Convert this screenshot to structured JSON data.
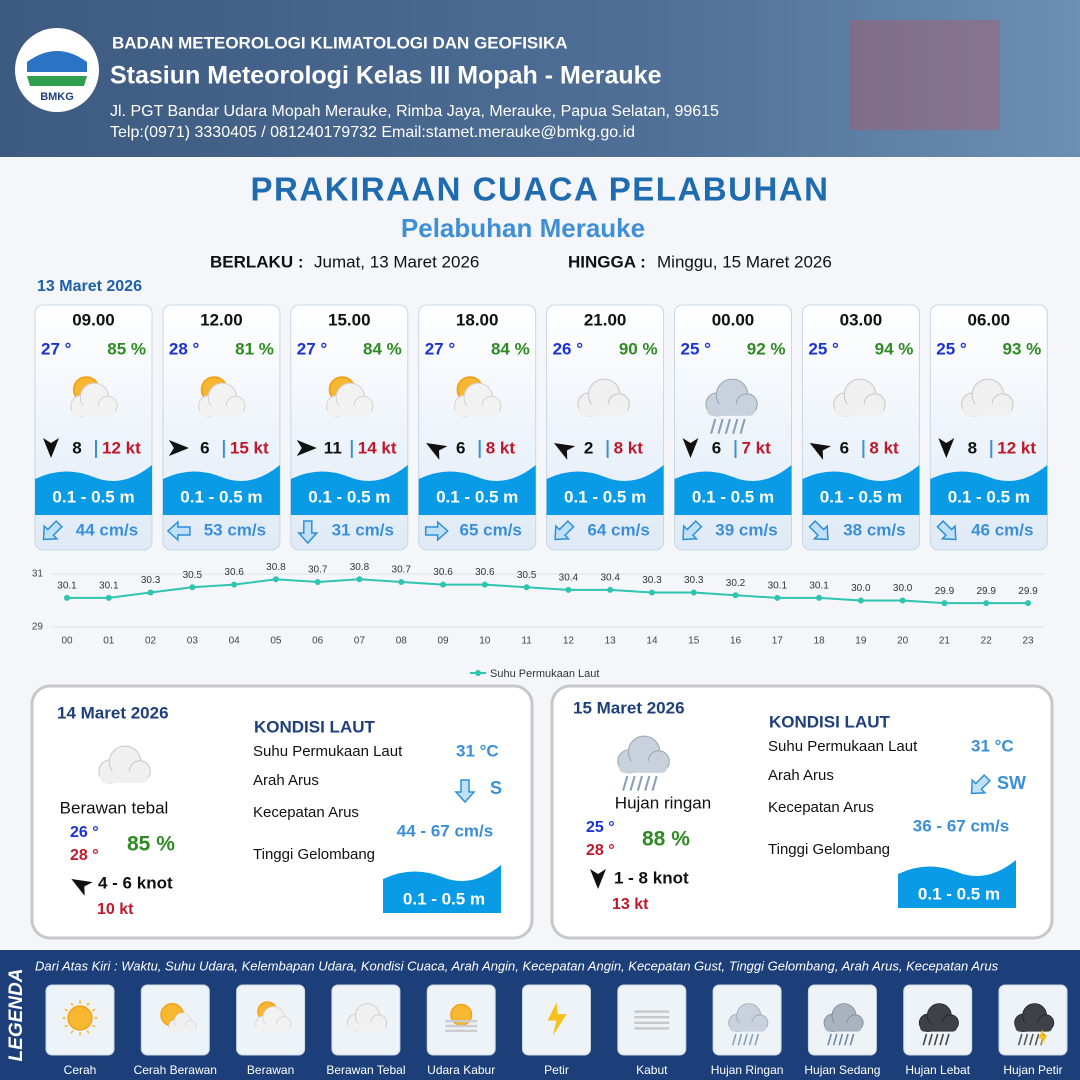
{
  "header": {
    "logo_text": "BMKG",
    "agency": "BADAN METEOROLOGI KLIMATOLOGI DAN GEOFISIKA",
    "station": "Stasiun Meteorologi Kelas III Mopah - Merauke",
    "address": "Jl. PGT Bandar Udara Mopah Merauke, Rimba Jaya, Merauke, Papua Selatan, 99615",
    "contact": "Telp:(0971) 3330405 / 081240179732  Email:stamet.merauke@bmkg.go.id"
  },
  "title": "PRAKIRAAN CUACA PELABUHAN",
  "subtitle": "Pelabuhan Merauke",
  "validity": {
    "from_label": "BERLAKU :",
    "from": "Jumat, 13 Maret 2026",
    "to_label": "HINGGA :",
    "to": "Minggu, 15 Maret 2026"
  },
  "day1": {
    "date": "13 Maret 2026",
    "cards": [
      {
        "time": "09.00",
        "temp": "27 °",
        "humidity": "85 %",
        "wind": "8",
        "gust": "12 kt",
        "wave": "0.1 - 0.5 m",
        "current": "44 cm/s"
      },
      {
        "time": "12.00",
        "temp": "28 °",
        "humidity": "81 %",
        "wind": "6",
        "gust": "15 kt",
        "wave": "0.1 - 0.5 m",
        "current": "53 cm/s"
      },
      {
        "time": "15.00",
        "temp": "27 °",
        "humidity": "84 %",
        "wind": "11",
        "gust": "14 kt",
        "wave": "0.1 - 0.5 m",
        "current": "31 cm/s"
      },
      {
        "time": "18.00",
        "temp": "27 °",
        "humidity": "84 %",
        "wind": "6",
        "gust": "8 kt",
        "wave": "0.1 - 0.5 m",
        "current": "65 cm/s"
      },
      {
        "time": "21.00",
        "temp": "26 °",
        "humidity": "90 %",
        "wind": "2",
        "gust": "8 kt",
        "wave": "0.1 - 0.5 m",
        "current": "64 cm/s"
      },
      {
        "time": "00.00",
        "temp": "25 °",
        "humidity": "92 %",
        "wind": "6",
        "gust": "7 kt",
        "wave": "0.1 - 0.5 m",
        "current": "39 cm/s"
      },
      {
        "time": "03.00",
        "temp": "25 °",
        "humidity": "94 %",
        "wind": "6",
        "gust": "8 kt",
        "wave": "0.1 - 0.5 m",
        "current": "38 cm/s"
      },
      {
        "time": "06.00",
        "temp": "25 °",
        "humidity": "93 %",
        "wind": "8",
        "gust": "12 kt",
        "wave": "0.1 - 0.5 m",
        "current": "46 cm/s"
      }
    ]
  },
  "chart_data": {
    "type": "line",
    "categories": [
      "00",
      "01",
      "02",
      "03",
      "04",
      "05",
      "06",
      "07",
      "08",
      "09",
      "10",
      "11",
      "12",
      "13",
      "14",
      "15",
      "16",
      "17",
      "18",
      "19",
      "20",
      "21",
      "22",
      "23"
    ],
    "series": [
      {
        "name": "Suhu Permukaan Laut",
        "color": "#2ec4b0",
        "values": [
          30.1,
          30.1,
          30.3,
          30.5,
          30.6,
          30.8,
          30.7,
          30.8,
          30.7,
          30.6,
          30.6,
          30.5,
          30.4,
          30.4,
          30.3,
          30.3,
          30.2,
          30.1,
          30.1,
          30.0,
          30.0,
          29.9,
          29.9,
          29.9
        ],
        "value_labels": [
          "30.1",
          "30.1",
          "30.3",
          "30.5",
          "30.6",
          "30.8",
          "30.7",
          "30.8",
          "30.7",
          "30.6",
          "30.6",
          "30.5",
          "30.4",
          "30.4",
          "30.3",
          "30.3",
          "30.2",
          "30.1",
          "30.1",
          "30.0",
          "30.0",
          "29.9",
          "29.9",
          "29.9"
        ]
      }
    ],
    "ylim": [
      29,
      31
    ],
    "yticks": [
      29,
      31
    ],
    "grid": true,
    "legend": "bottom"
  },
  "days": [
    {
      "date": "14 Maret 2026",
      "weather": "Berawan tebal",
      "temp_min": "26 °",
      "temp_max": "28 °",
      "humidity": "85 %",
      "wind": "4  - 6 knot",
      "gust": "10 kt",
      "sea": {
        "heading": "KONDISI LAUT",
        "sst_label": "Suhu Permukaan Laut",
        "sst": "31 °C",
        "dir_label": "Arah Arus",
        "dir": "S",
        "speed_label": "Kecepatan Arus",
        "speed": "44 - 67 cm/s",
        "wave_label": "Tinggi Gelombang",
        "wave": "0.1 - 0.5 m"
      }
    },
    {
      "date": "15 Maret 2026",
      "weather": "Hujan ringan",
      "temp_min": "25 °",
      "temp_max": "28 °",
      "humidity": "88 %",
      "wind": "1  - 8 knot",
      "gust": "13 kt",
      "sea": {
        "heading": "KONDISI LAUT",
        "sst_label": "Suhu Permukaan Laut",
        "sst": "31 °C",
        "dir_label": "Arah Arus",
        "dir": "SW",
        "speed_label": "Kecepatan Arus",
        "speed": "36 - 67 cm/s",
        "wave_label": "Tinggi Gelombang",
        "wave": "0.1 - 0.5 m"
      }
    }
  ],
  "legend": {
    "title": "LEGENDA",
    "description": "Dari Atas Kiri : Waktu, Suhu Udara, Kelembapan Udara, Kondisi Cuaca, Arah Angin, Kecepatan Angin, Kecepatan Gust, Tinggi Gelombang, Arah Arus, Kecepatan Arus",
    "items": [
      "Cerah",
      "Cerah Berawan",
      "Berawan",
      "Berawan Tebal",
      "Udara Kabur",
      "Petir",
      "Kabut",
      "Hujan Ringan",
      "Hujan Sedang",
      "Hujan Lebat",
      "Hujan Petir"
    ]
  }
}
